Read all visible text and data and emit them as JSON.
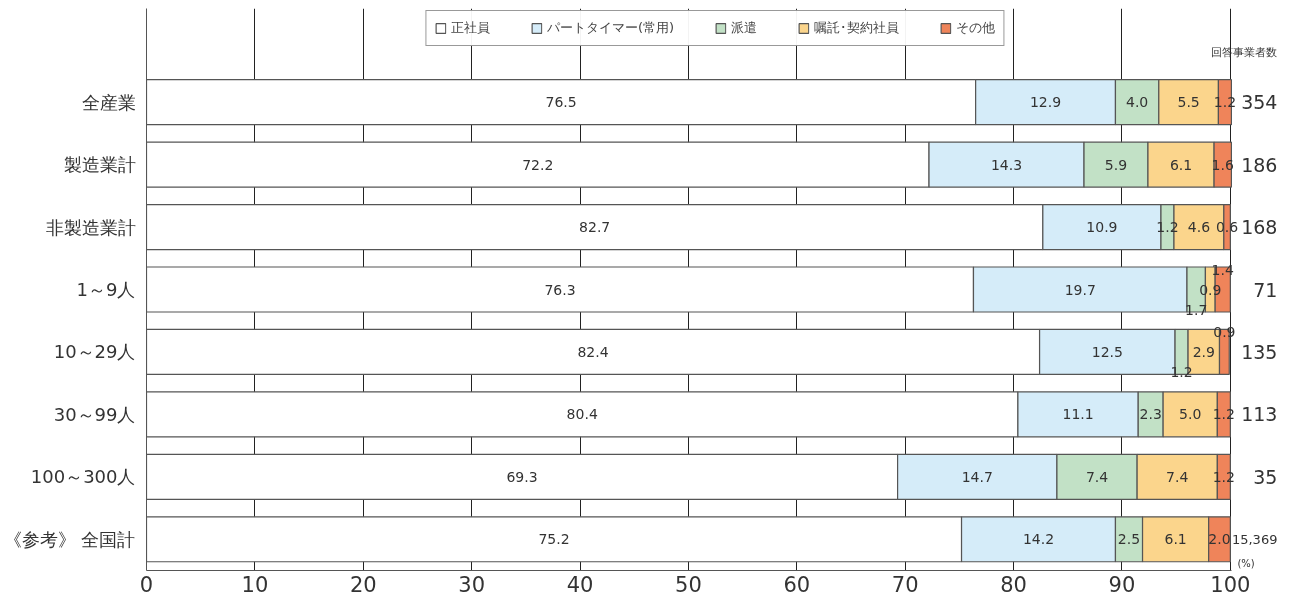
{
  "chart_data": {
    "type": "bar",
    "orientation": "horizontal",
    "stacked": true,
    "categories": [
      "全産業",
      "製造業計",
      "非製造業計",
      "1～9人",
      "10～29人",
      "30～99人",
      "100～300人",
      "《参考》 全国計"
    ],
    "series": [
      {
        "name": "正社員",
        "color": "#ffffff",
        "values": [
          76.5,
          72.2,
          82.7,
          76.3,
          82.4,
          80.4,
          69.3,
          75.2
        ],
        "value_labels": [
          "76.5",
          "72.2",
          "82.7",
          "76.3",
          "82.4",
          "80.4",
          "69.3",
          "75.2"
        ]
      },
      {
        "name": "パートタイマー(常用)",
        "color": "#d5ecf9",
        "values": [
          12.9,
          14.3,
          10.9,
          19.7,
          12.5,
          11.1,
          14.7,
          14.2
        ],
        "value_labels": [
          "12.9",
          "14.3",
          "10.9",
          "19.7",
          "12.5",
          "11.1",
          "14.7",
          "14.2"
        ]
      },
      {
        "name": "派遣",
        "color": "#c2e1c6",
        "values": [
          4.0,
          5.9,
          1.2,
          1.7,
          1.2,
          2.3,
          7.4,
          2.5
        ],
        "value_labels": [
          "4.0",
          "5.9",
          "1.2",
          "1.7",
          "1.2",
          "2.3",
          "7.4",
          "2.5"
        ]
      },
      {
        "name": "嘱託･契約社員",
        "color": "#fbd58c",
        "values": [
          5.5,
          6.1,
          4.6,
          0.9,
          2.9,
          5.0,
          7.4,
          6.1
        ],
        "value_labels": [
          "5.5",
          "6.1",
          "4.6",
          "0.9",
          "2.9",
          "5.0",
          "7.4",
          "6.1"
        ]
      },
      {
        "name": "その他",
        "color": "#ef845a",
        "values": [
          1.2,
          1.6,
          0.6,
          1.4,
          0.9,
          1.2,
          1.2,
          2.0
        ],
        "value_labels": [
          "1.2",
          "1.6",
          "0.6",
          "1.4",
          "0.9",
          "1.2",
          "1.2",
          "2.0"
        ]
      }
    ],
    "xlim": [
      0,
      100.1
    ],
    "xticks": [
      0,
      10,
      20,
      30,
      40,
      50,
      60,
      70,
      80,
      90,
      100
    ],
    "xlabel": "(%)",
    "grid": "x",
    "legend": "top",
    "data_labels": true,
    "annotations": [
      "回答事業者数",
      "354",
      "186",
      "168",
      "71",
      "135",
      "113",
      "35",
      "15,369"
    ]
  }
}
